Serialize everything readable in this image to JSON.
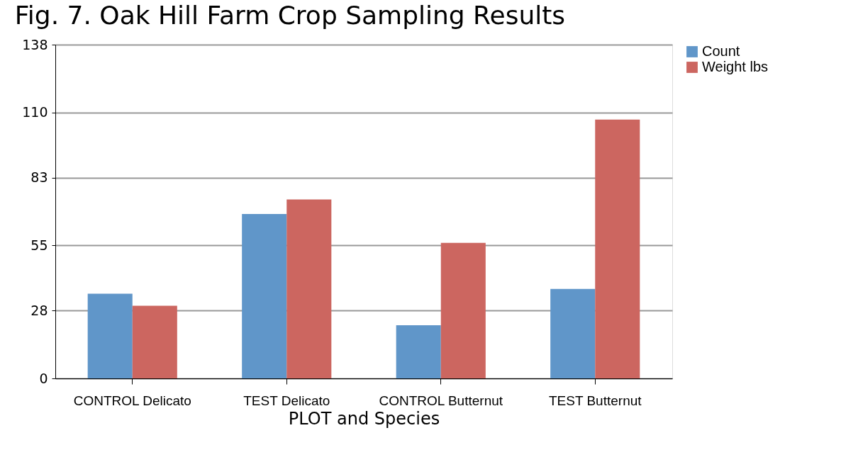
{
  "chart_data": {
    "type": "bar",
    "title": "Fig. 7. Oak Hill Farm Crop Sampling Results",
    "xlabel": "PLOT and Species",
    "categories": [
      "CONTROL Delicato",
      "TEST Delicato",
      "CONTROL Butternut",
      "TEST Butternut"
    ],
    "series": [
      {
        "name": "Count",
        "color": "#6096c9",
        "values": [
          35,
          68,
          22,
          37
        ]
      },
      {
        "name": "Weight lbs",
        "color": "#cc6660",
        "values": [
          30,
          74,
          56,
          107
        ]
      }
    ],
    "ylim": [
      0,
      138
    ],
    "yticks": [
      0,
      28,
      55,
      83,
      110,
      138
    ],
    "grid": "y",
    "legend": "right"
  }
}
